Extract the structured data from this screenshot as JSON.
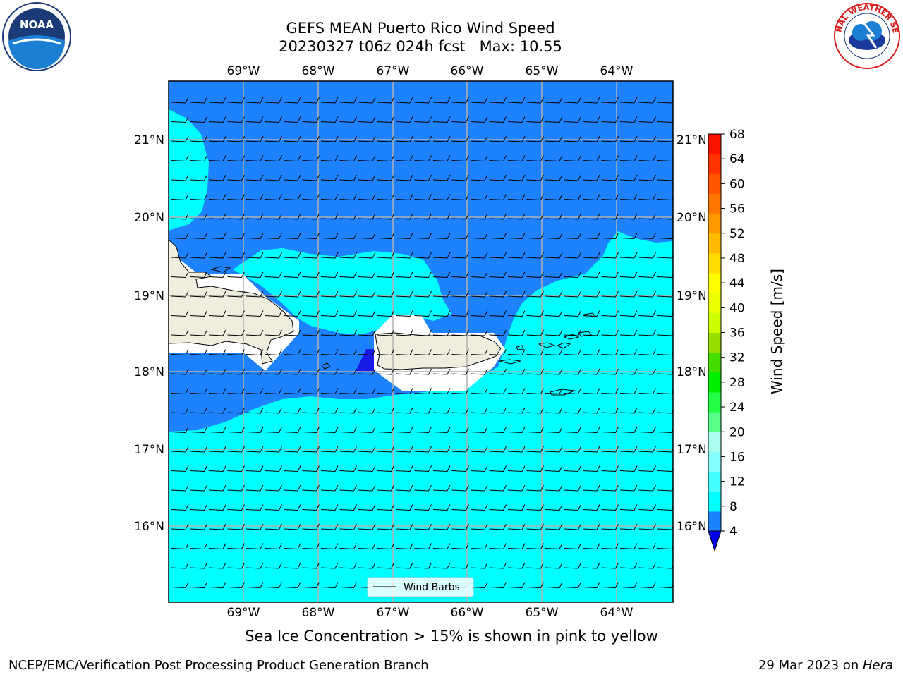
{
  "title": {
    "line1": "GEFS MEAN Puerto Rico Wind Speed",
    "line2": "20230327 t06z 024h fcst   Max: 10.55"
  },
  "map": {
    "lon_labels": [
      "69°W",
      "68°W",
      "67°W",
      "66°W",
      "65°W",
      "64°W"
    ],
    "lat_labels": [
      "21°N",
      "20°N",
      "19°N",
      "18°N",
      "17°N",
      "16°N"
    ],
    "legend_label": "Wind Barbs",
    "colors": {
      "land": "#efedde",
      "speed_4_8": "#1e82ff",
      "speed_8_12": "#00ffff",
      "speed_lt_4": "#1a1ae6",
      "grid": "#b0b0b0"
    }
  },
  "colorbar": {
    "label": "Wind Speed [m/s]",
    "ticks": [
      "4",
      "8",
      "12",
      "16",
      "20",
      "24",
      "28",
      "32",
      "36",
      "40",
      "44",
      "48",
      "52",
      "56",
      "60",
      "64",
      "68"
    ],
    "colors": [
      "#1e82ff",
      "#00ffff",
      "#44ffff",
      "#88ffff",
      "#aaffee",
      "#55ff88",
      "#22ff44",
      "#00ee00",
      "#44dd00",
      "#99dd00",
      "#ccff00",
      "#eeff00",
      "#ffff00",
      "#ffdd00",
      "#ffbb00",
      "#ff9900",
      "#ff7700",
      "#ff5500",
      "#ff3300",
      "#ff1100"
    ],
    "under_color": "#0000ee"
  },
  "subtitle": "Sea Ice Concentration > 15% is shown in pink to yellow",
  "footer": {
    "left": "NCEP/EMC/Verification Post Processing Product Generation Branch",
    "right_prefix": "29 Mar 2023 on ",
    "right_host": "Hera"
  },
  "logos": {
    "noaa_text": "NOAA",
    "nws_text": "NATIONAL WEATHER SERVICE"
  }
}
